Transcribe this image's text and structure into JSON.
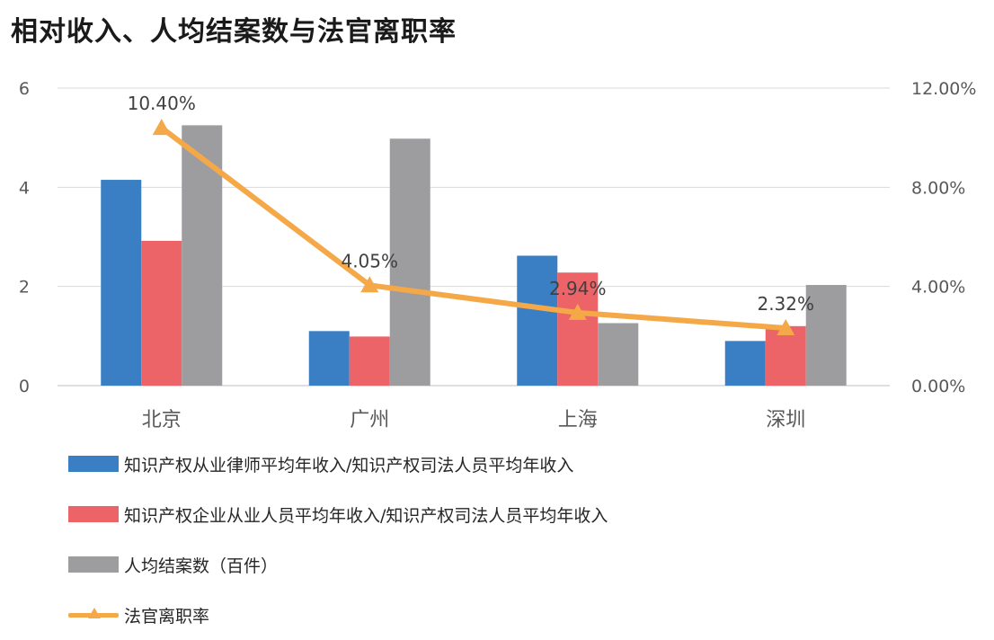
{
  "chart_data": {
    "type": "bar",
    "title": "相对收入、人均结案数与法官离职率",
    "categories": [
      "北京",
      "广州",
      "上海",
      "深圳"
    ],
    "y_left": {
      "ylim": [
        0,
        6
      ],
      "ticks": [
        "0",
        "2",
        "4",
        "6"
      ]
    },
    "y_right": {
      "ylim": [
        0,
        12
      ],
      "ticks": [
        "0.00%",
        "4.00%",
        "8.00%",
        "12.00%"
      ]
    },
    "grid": true,
    "legend_position": "bottom",
    "series": [
      {
        "name": "知识产权从业律师平均年收入/知识产权司法人员平均年收入",
        "type": "bar",
        "axis": "left",
        "color": "#3a7fc4",
        "values": [
          4.15,
          1.1,
          2.62,
          0.9
        ]
      },
      {
        "name": "知识产权企业从业人员平均年收入/知识产权司法人员平均年收入",
        "type": "bar",
        "axis": "left",
        "color": "#ec6467",
        "values": [
          2.92,
          0.99,
          2.28,
          1.2
        ]
      },
      {
        "name": "人均结案数（百件）",
        "type": "bar",
        "axis": "left",
        "color": "#9d9da0",
        "values": [
          5.25,
          4.98,
          1.26,
          2.03
        ]
      },
      {
        "name": "法官离职率",
        "type": "line",
        "axis": "right",
        "color": "#f5a847",
        "values": [
          10.4,
          4.05,
          2.94,
          2.32
        ],
        "labels": [
          "10.40%",
          "4.05%",
          "2.94%",
          "2.32%"
        ]
      }
    ]
  }
}
